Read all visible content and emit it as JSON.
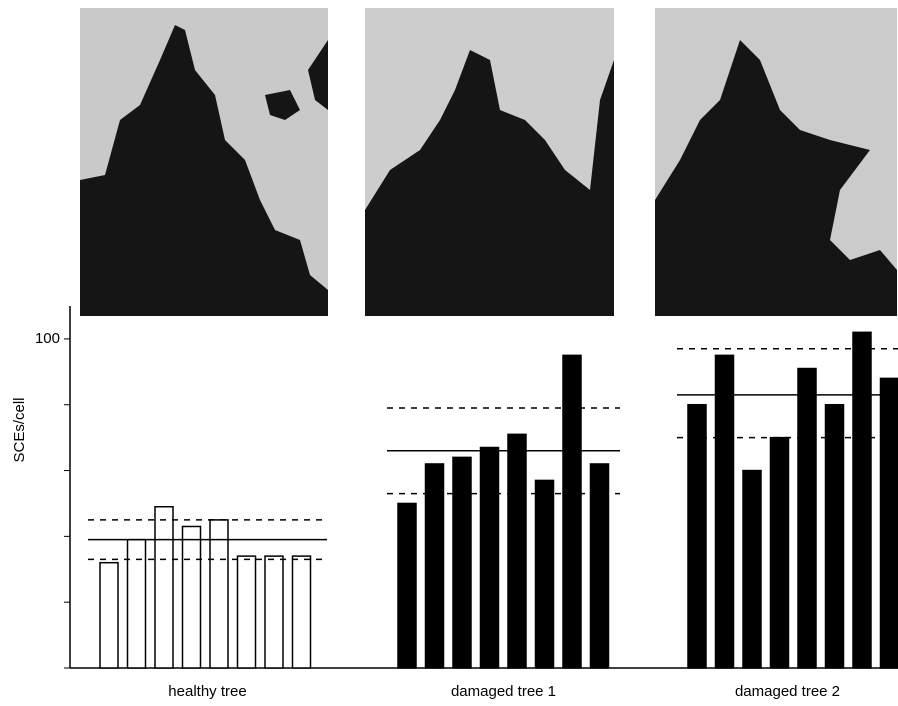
{
  "chart_data": {
    "type": "bar",
    "y_label": "SCEs/cell",
    "ylim": [
      0,
      110
    ],
    "yticks": [
      100
    ],
    "minor_yticks": [
      0,
      20,
      40,
      60,
      80
    ],
    "groups": [
      {
        "name": "healthy tree",
        "color": "#ffffff",
        "values": [
          32,
          39,
          49,
          43,
          45,
          34,
          34,
          34
        ],
        "mean": 39,
        "range": [
          33,
          45
        ]
      },
      {
        "name": "damaged tree 1",
        "color": "#000000",
        "values": [
          50,
          62,
          64,
          67,
          71,
          57,
          95,
          62
        ],
        "mean": 66,
        "range": [
          53,
          79
        ]
      },
      {
        "name": "damaged tree 2",
        "color": "#000000",
        "values": [
          80,
          95,
          60,
          70,
          91,
          80,
          102,
          88
        ],
        "mean": 83,
        "range": [
          70,
          97
        ]
      }
    ]
  }
}
